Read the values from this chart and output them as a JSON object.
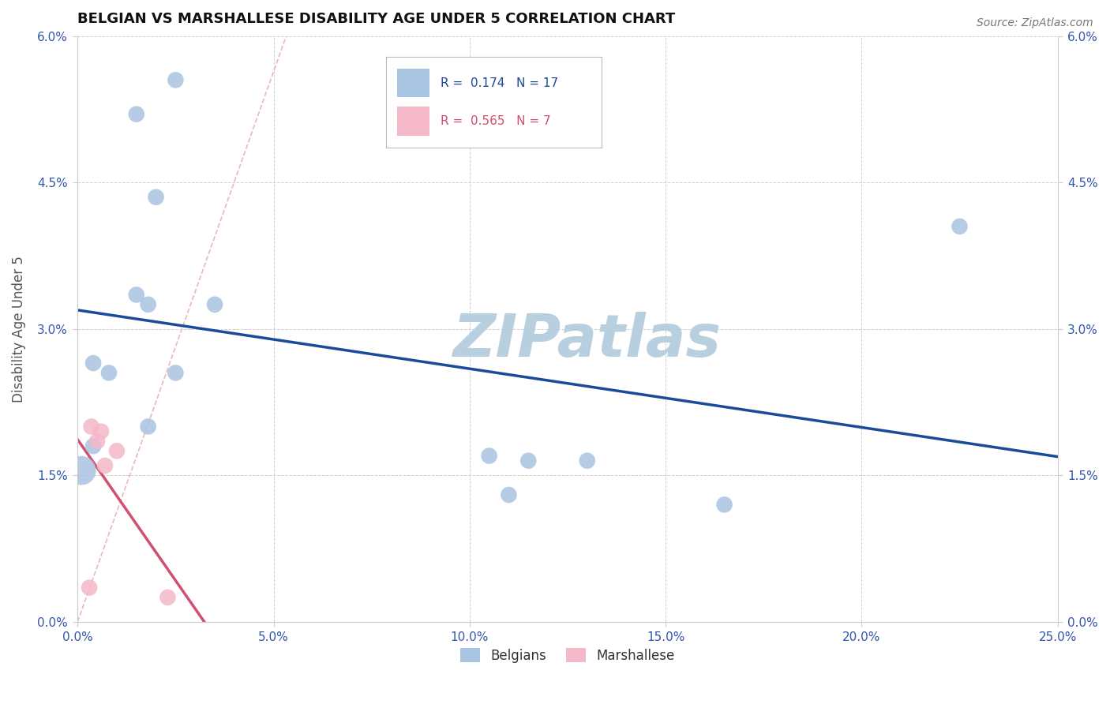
{
  "title": "BELGIAN VS MARSHALLESE DISABILITY AGE UNDER 5 CORRELATION CHART",
  "source": "Source: ZipAtlas.com",
  "xlabel_vals": [
    0.0,
    5.0,
    10.0,
    15.0,
    20.0,
    25.0
  ],
  "ylabel_vals": [
    0.0,
    1.5,
    3.0,
    4.5,
    6.0
  ],
  "xlim": [
    0.0,
    25.0
  ],
  "ylim": [
    0.0,
    6.0
  ],
  "ylabel": "Disability Age Under 5",
  "belgian_R": 0.174,
  "belgian_N": 17,
  "marshallese_R": 0.565,
  "marshallese_N": 7,
  "belgian_color": "#a8c4e0",
  "marshallese_color": "#f4b8c8",
  "belgian_line_color": "#1a4a9a",
  "marshallese_line_color": "#d05070",
  "diagonal_color": "#e8b0b8",
  "watermark": "ZIPatlas",
  "watermark_color": "#b8cfe0",
  "belgian_points": [
    [
      1.5,
      5.2
    ],
    [
      2.5,
      5.55
    ],
    [
      2.0,
      4.35
    ],
    [
      1.5,
      3.35
    ],
    [
      1.8,
      3.25
    ],
    [
      3.5,
      3.25
    ],
    [
      0.4,
      2.65
    ],
    [
      0.8,
      2.55
    ],
    [
      2.5,
      2.55
    ],
    [
      1.8,
      2.0
    ],
    [
      0.4,
      1.8
    ],
    [
      10.5,
      1.7
    ],
    [
      11.5,
      1.65
    ],
    [
      13.0,
      1.65
    ],
    [
      11.0,
      1.3
    ],
    [
      16.5,
      1.2
    ],
    [
      22.5,
      4.05
    ]
  ],
  "marshallese_points": [
    [
      0.35,
      2.0
    ],
    [
      0.6,
      1.95
    ],
    [
      0.5,
      1.85
    ],
    [
      1.0,
      1.75
    ],
    [
      0.7,
      1.6
    ],
    [
      0.3,
      0.35
    ],
    [
      2.3,
      0.25
    ]
  ],
  "belgian_large_point": [
    0.1,
    1.55
  ],
  "belgian_large_size": 700
}
